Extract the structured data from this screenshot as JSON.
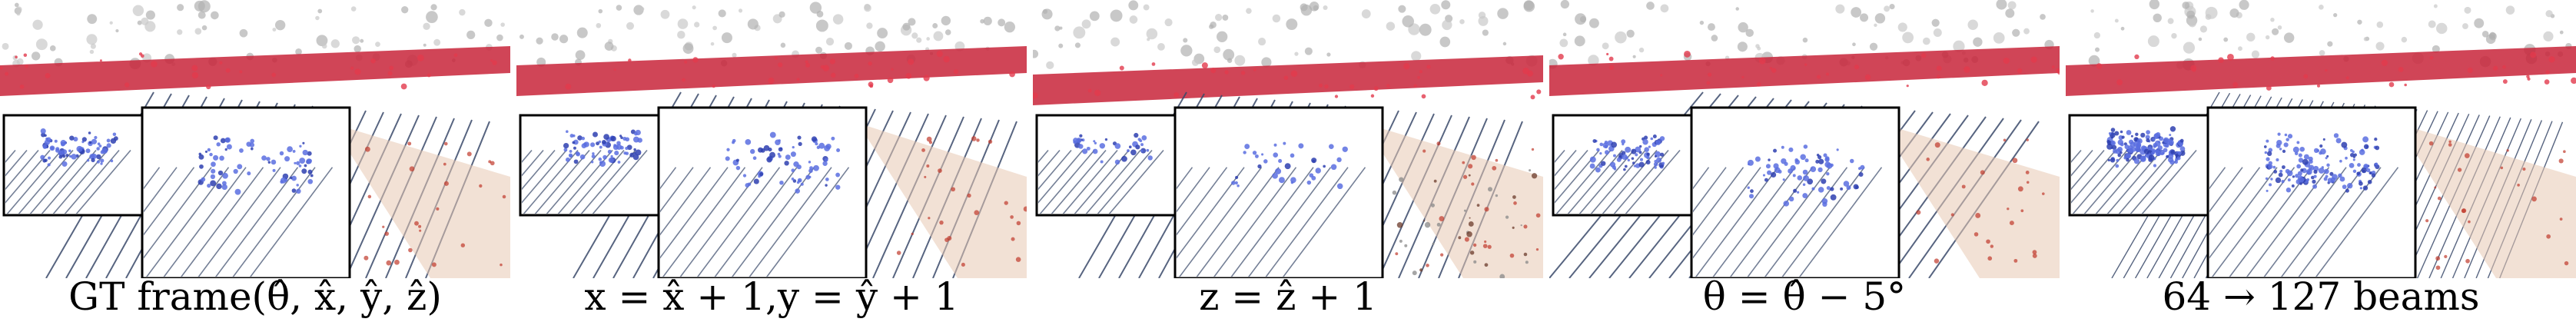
{
  "panels": [
    {
      "caption": "GT frame(θ̂, x̂, ŷ, ẑ)"
    },
    {
      "caption": "x = x̂ + 1,y = ŷ + 1"
    },
    {
      "caption": "z = ẑ + 1"
    },
    {
      "caption": "θ = θ̂ − 5°"
    },
    {
      "caption": "64 → 127 beams"
    }
  ]
}
